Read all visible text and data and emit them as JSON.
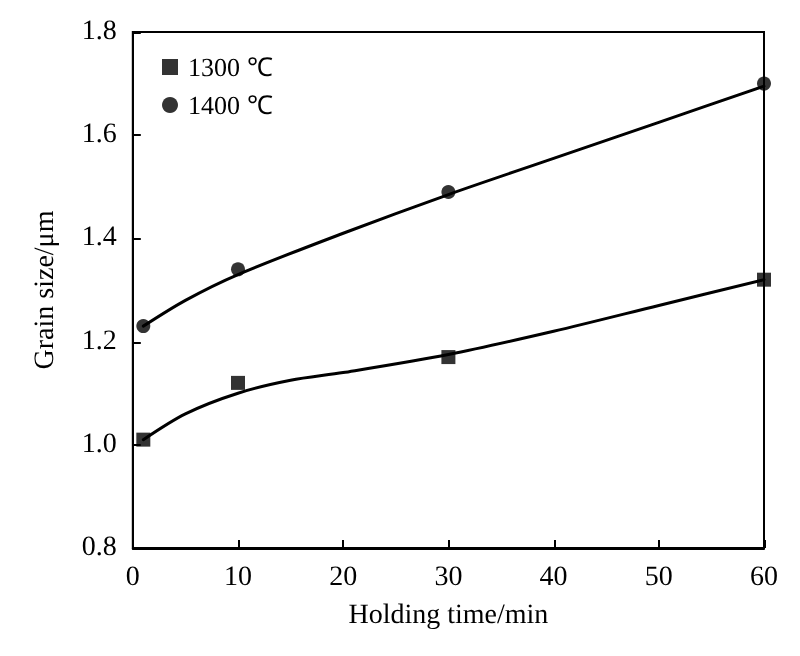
{
  "chart_data": {
    "type": "scatter",
    "xlabel": "Holding time/min",
    "ylabel": "Grain size/μm",
    "xlim": [
      0,
      60
    ],
    "xticks": [
      0,
      10,
      20,
      30,
      40,
      50,
      60
    ],
    "ylim": [
      0.8,
      1.8
    ],
    "yticks": [
      {
        "value": 0.8,
        "label": "0.8"
      },
      {
        "value": 1,
        "label": "1.0"
      },
      {
        "value": 1.2,
        "label": "1.2"
      },
      {
        "value": 1.4,
        "label": "1.4"
      },
      {
        "value": 1.6,
        "label": "1.6"
      },
      {
        "value": 1.8,
        "label": "1.8"
      }
    ],
    "grid": false,
    "legend": "top left",
    "series": [
      {
        "name": "1300 ℃",
        "marker": "square",
        "color": "#000000",
        "x": [
          1,
          10,
          30,
          60
        ],
        "values": [
          1.01,
          1.12,
          1.17,
          1.32
        ]
      },
      {
        "name": "1400 ℃",
        "marker": "circle",
        "color": "#000000",
        "x": [
          1,
          10,
          30,
          60
        ],
        "values": [
          1.23,
          1.34,
          1.49,
          1.7
        ]
      },
      {
        "type": "line",
        "marker": "none",
        "line_style": "solid",
        "color": "#000000",
        "x": [
          1,
          5,
          10,
          15,
          20,
          30,
          40,
          50,
          60
        ],
        "values": [
          1.01,
          1.06,
          1.1,
          1.125,
          1.14,
          1.175,
          1.22,
          1.27,
          1.32
        ]
      },
      {
        "type": "line",
        "marker": "none",
        "line_style": "solid",
        "color": "#000000",
        "x": [
          1,
          5,
          10,
          20,
          30,
          40,
          50,
          60
        ],
        "values": [
          1.23,
          1.28,
          1.33,
          1.41,
          1.485,
          1.555,
          1.625,
          1.695
        ]
      }
    ]
  }
}
